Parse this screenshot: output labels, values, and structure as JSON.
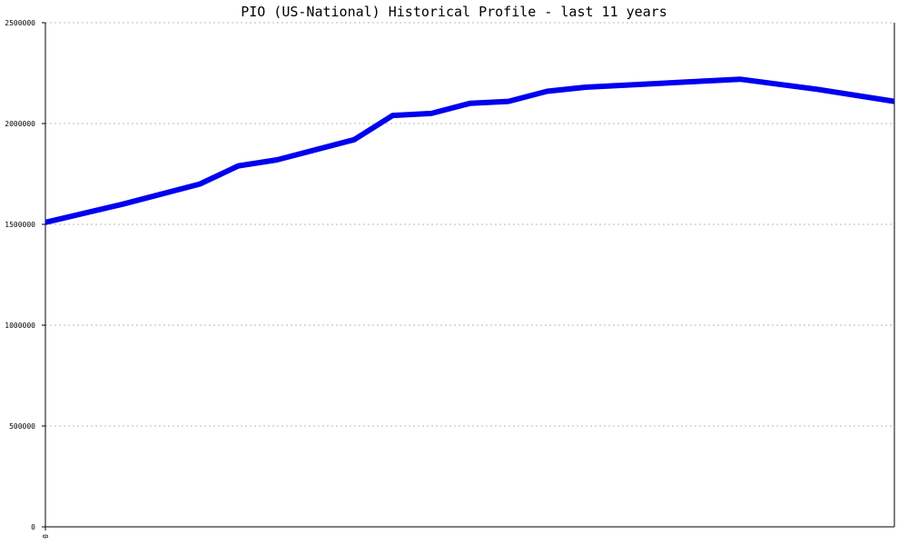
{
  "chart_data": {
    "type": "line",
    "title": "PIO (US-National) Historical Profile - last 11 years",
    "xlabel": "",
    "ylabel": "",
    "x_tick_labels": [
      "0"
    ],
    "y_ticks": [
      0,
      500000,
      1000000,
      1500000,
      2000000,
      2500000
    ],
    "y_tick_labels": [
      "0",
      "500000",
      "1000000",
      "1500000",
      "2000000",
      "2500000"
    ],
    "ylim": [
      0,
      2500000
    ],
    "xlim": [
      0,
      11
    ],
    "grid": "horizontal-dotted",
    "series": [
      {
        "color": "#0000ee",
        "x": [
          0,
          1,
          2,
          2.5,
          3,
          4,
          4.5,
          5,
          5.5,
          6,
          6.5,
          7,
          8,
          8.5,
          9,
          10,
          11
        ],
        "values": [
          1510000,
          1600000,
          1700000,
          1790000,
          1820000,
          1920000,
          2040000,
          2050000,
          2100000,
          2110000,
          2160000,
          2180000,
          2200000,
          2210000,
          2220000,
          2170000,
          2110000
        ]
      }
    ]
  }
}
